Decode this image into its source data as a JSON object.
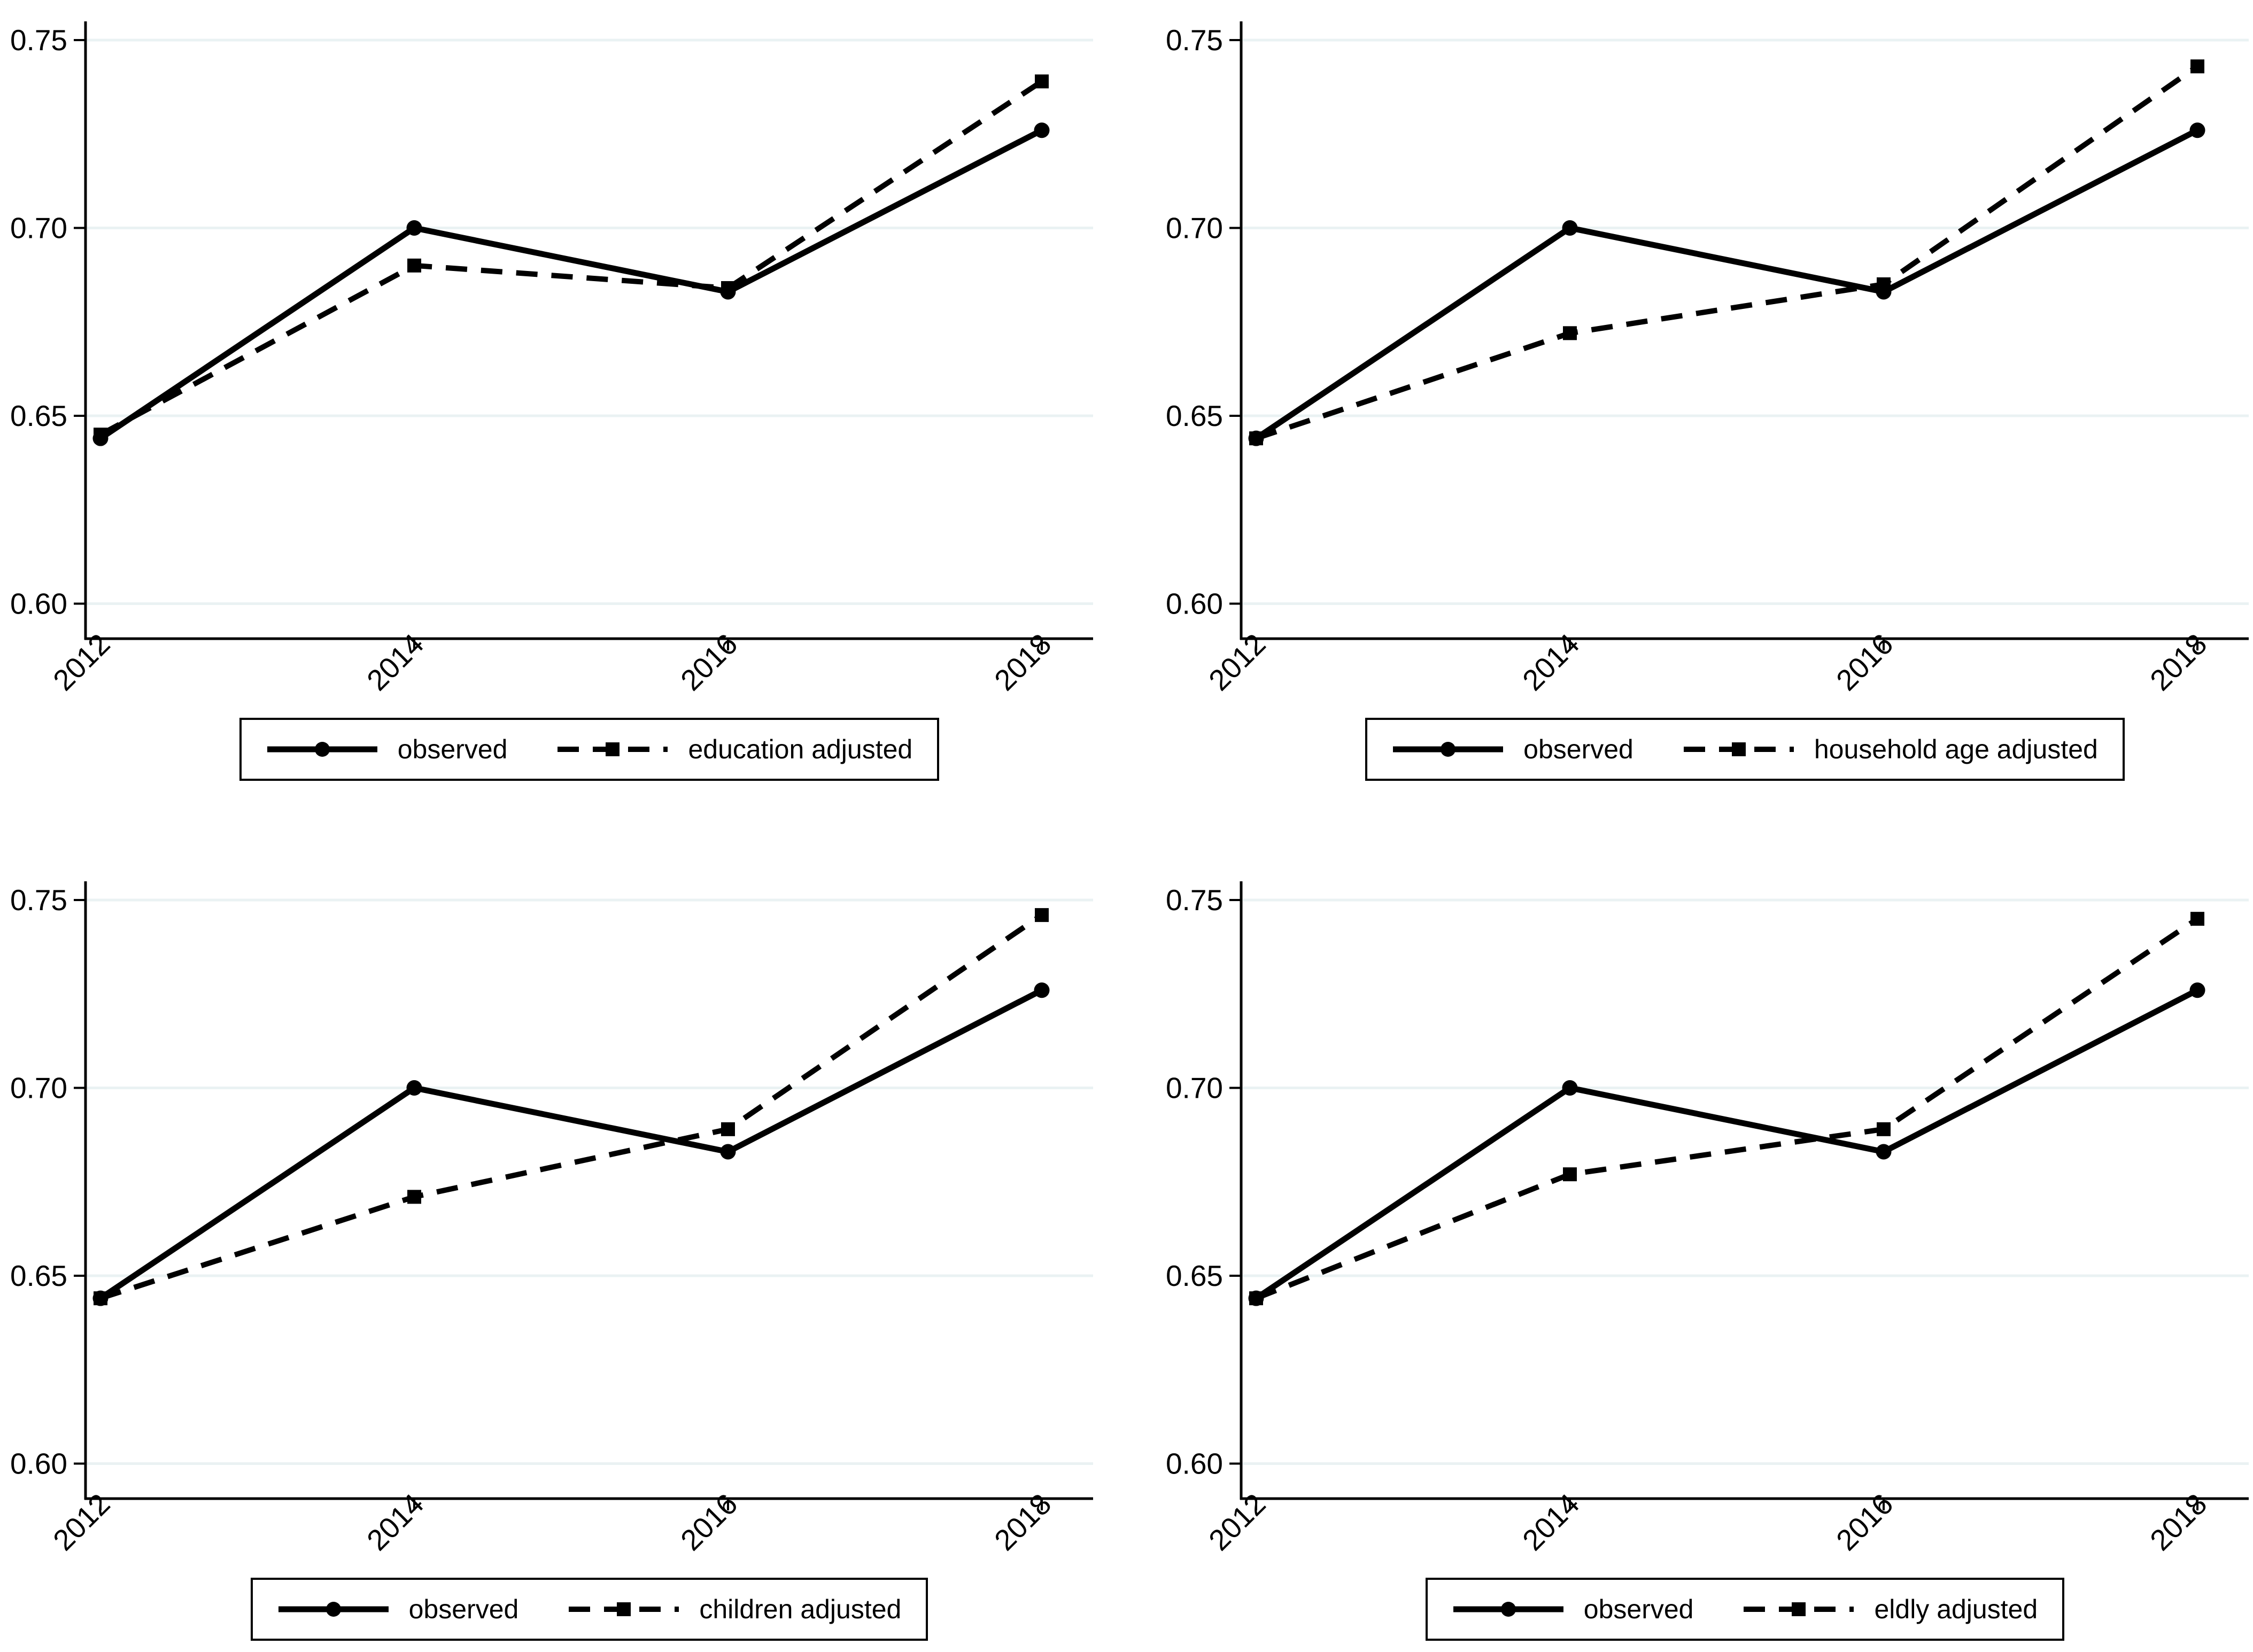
{
  "figure": {
    "background_color": "#ffffff",
    "grid_color": "#eaf2f3",
    "line_color": "#000000",
    "panel_layout": "2x2"
  },
  "chart_data": [
    {
      "type": "line",
      "panel": "top-left",
      "x": [
        2012,
        2014,
        2016,
        2018
      ],
      "x_tick_labels": [
        "2012",
        "2014",
        "2016",
        "2018"
      ],
      "y_ticks": [
        0.6,
        0.65,
        0.7,
        0.75
      ],
      "y_tick_labels": [
        "0.60",
        "0.65",
        "0.70",
        "0.75"
      ],
      "ylim": [
        0.59,
        0.755
      ],
      "grid": true,
      "legend_position": "bottom",
      "series": [
        {
          "name": "observed",
          "line_style": "solid",
          "marker": "circle",
          "values": [
            0.644,
            0.7,
            0.683,
            0.726
          ]
        },
        {
          "name": "education adjusted",
          "line_style": "dashed",
          "marker": "square",
          "values": [
            0.645,
            0.69,
            0.684,
            0.739
          ]
        }
      ]
    },
    {
      "type": "line",
      "panel": "top-right",
      "x": [
        2012,
        2014,
        2016,
        2018
      ],
      "x_tick_labels": [
        "2012",
        "2014",
        "2016",
        "2018"
      ],
      "y_ticks": [
        0.6,
        0.65,
        0.7,
        0.75
      ],
      "y_tick_labels": [
        "0.60",
        "0.65",
        "0.70",
        "0.75"
      ],
      "ylim": [
        0.59,
        0.755
      ],
      "grid": true,
      "legend_position": "bottom",
      "series": [
        {
          "name": "observed",
          "line_style": "solid",
          "marker": "circle",
          "values": [
            0.644,
            0.7,
            0.683,
            0.726
          ]
        },
        {
          "name": "household age adjusted",
          "line_style": "dashed",
          "marker": "square",
          "values": [
            0.644,
            0.672,
            0.685,
            0.743
          ]
        }
      ]
    },
    {
      "type": "line",
      "panel": "bottom-left",
      "x": [
        2012,
        2014,
        2016,
        2018
      ],
      "x_tick_labels": [
        "2012",
        "2014",
        "2016",
        "2018"
      ],
      "y_ticks": [
        0.6,
        0.65,
        0.7,
        0.75
      ],
      "y_tick_labels": [
        "0.60",
        "0.65",
        "0.70",
        "0.75"
      ],
      "ylim": [
        0.59,
        0.755
      ],
      "grid": true,
      "legend_position": "bottom",
      "series": [
        {
          "name": "observed",
          "line_style": "solid",
          "marker": "circle",
          "values": [
            0.644,
            0.7,
            0.683,
            0.726
          ]
        },
        {
          "name": "children adjusted",
          "line_style": "dashed",
          "marker": "square",
          "values": [
            0.644,
            0.671,
            0.689,
            0.746
          ]
        }
      ]
    },
    {
      "type": "line",
      "panel": "bottom-right",
      "x": [
        2012,
        2014,
        2016,
        2018
      ],
      "x_tick_labels": [
        "2012",
        "2014",
        "2016",
        "2018"
      ],
      "y_ticks": [
        0.6,
        0.65,
        0.7,
        0.75
      ],
      "y_tick_labels": [
        "0.60",
        "0.65",
        "0.70",
        "0.75"
      ],
      "ylim": [
        0.59,
        0.755
      ],
      "grid": true,
      "legend_position": "bottom",
      "series": [
        {
          "name": "observed",
          "line_style": "solid",
          "marker": "circle",
          "values": [
            0.644,
            0.7,
            0.683,
            0.726
          ]
        },
        {
          "name": "eldly adjusted",
          "line_style": "dashed",
          "marker": "square",
          "values": [
            0.644,
            0.677,
            0.689,
            0.745
          ]
        }
      ]
    }
  ]
}
